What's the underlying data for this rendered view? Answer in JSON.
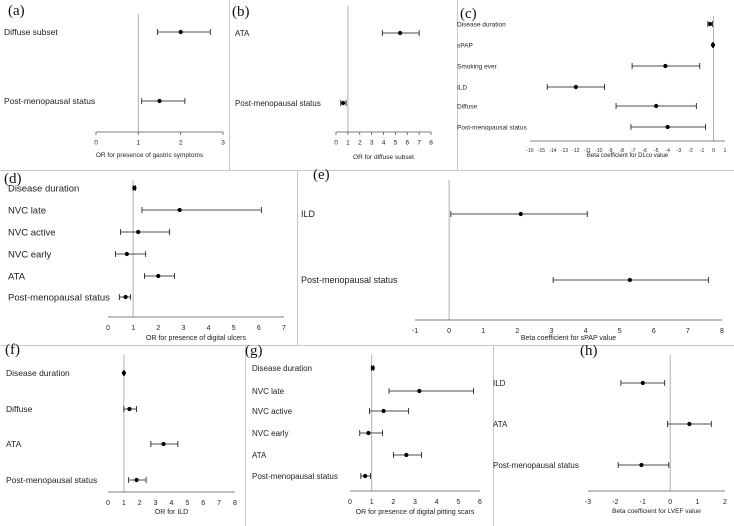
{
  "chart_data": [
    {
      "panel": "(a)",
      "type": "forest",
      "xlabel": "OR for presence of gastric symptoms",
      "xlim": [
        0,
        3
      ],
      "xticks": [
        0,
        1,
        2,
        3
      ],
      "reference": 1,
      "rows": [
        {
          "label": "Diffuse subset",
          "estimate": 2.0,
          "low": 1.45,
          "high": 2.7
        },
        {
          "label": "Post-menopausal status",
          "estimate": 1.5,
          "low": 1.08,
          "high": 2.1
        }
      ]
    },
    {
      "panel": "(b)",
      "type": "forest",
      "xlabel": "OR for diffuse subset",
      "xlim": [
        0,
        8
      ],
      "xticks": [
        0,
        1,
        2,
        3,
        4,
        5,
        6,
        7,
        8
      ],
      "reference": 1,
      "rows": [
        {
          "label": "ATA",
          "estimate": 5.4,
          "low": 3.9,
          "high": 7.0
        },
        {
          "label": "Post-menopausal status",
          "estimate": 0.6,
          "low": 0.4,
          "high": 0.85
        }
      ]
    },
    {
      "panel": "(c)",
      "type": "forest",
      "xlabel": "Beta coefficient for DLco value",
      "xlim": [
        -16,
        1
      ],
      "xticks": [
        -16,
        -15,
        -14,
        -13,
        -12,
        -11,
        -10,
        -9,
        -8,
        -7,
        -6,
        -5,
        -4,
        -3,
        -2,
        -1,
        0,
        1
      ],
      "reference": 0,
      "rows": [
        {
          "label": "Disease duration",
          "estimate": -0.3,
          "low": -0.5,
          "high": -0.1
        },
        {
          "label": "sPAP",
          "estimate": -0.05,
          "low": -0.1,
          "high": 0.0
        },
        {
          "label": "Smoking ever",
          "estimate": -4.2,
          "low": -7.1,
          "high": -1.2
        },
        {
          "label": "ILD",
          "estimate": -12.0,
          "low": -14.5,
          "high": -9.5
        },
        {
          "label": "Diffuse",
          "estimate": -5.0,
          "low": -8.5,
          "high": -1.5
        },
        {
          "label": "Post-menopausal status",
          "estimate": -4.0,
          "low": -7.2,
          "high": -0.7
        }
      ]
    },
    {
      "panel": "(d)",
      "type": "forest",
      "xlabel": "OR for presence of digital ulcers",
      "xlim": [
        0,
        7
      ],
      "xticks": [
        0,
        1,
        2,
        3,
        4,
        5,
        6,
        7
      ],
      "reference": 1,
      "rows": [
        {
          "label": "Disease duration",
          "estimate": 1.05,
          "low": 1.0,
          "high": 1.1
        },
        {
          "label": "NVC late",
          "estimate": 2.85,
          "low": 1.35,
          "high": 6.1
        },
        {
          "label": "NVC active",
          "estimate": 1.2,
          "low": 0.5,
          "high": 2.45
        },
        {
          "label": "NVC early",
          "estimate": 0.75,
          "low": 0.3,
          "high": 1.5
        },
        {
          "label": "ATA",
          "estimate": 2.0,
          "low": 1.45,
          "high": 2.65
        },
        {
          "label": "Post-menopausal status",
          "estimate": 0.7,
          "low": 0.45,
          "high": 0.9
        }
      ]
    },
    {
      "panel": "(e)",
      "type": "forest",
      "xlabel": "Beta coefficient for sPAP value",
      "xlim": [
        -1,
        8
      ],
      "xticks": [
        -1,
        0,
        1,
        2,
        3,
        4,
        5,
        6,
        7,
        8
      ],
      "reference": 0,
      "rows": [
        {
          "label": "ILD",
          "estimate": 2.1,
          "low": 0.05,
          "high": 4.05
        },
        {
          "label": "Post-menopausal status",
          "estimate": 5.3,
          "low": 3.05,
          "high": 7.6
        }
      ]
    },
    {
      "panel": "(f)",
      "type": "forest",
      "xlabel": "OR for ILD",
      "xlim": [
        0,
        8
      ],
      "xticks": [
        0,
        1,
        2,
        3,
        4,
        5,
        6,
        7,
        8
      ],
      "reference": 1,
      "rows": [
        {
          "label": "Disease duration",
          "estimate": 1.0,
          "low": 0.97,
          "high": 1.03
        },
        {
          "label": "Diffuse",
          "estimate": 1.35,
          "low": 1.0,
          "high": 1.8
        },
        {
          "label": "ATA",
          "estimate": 3.5,
          "low": 2.7,
          "high": 4.4
        },
        {
          "label": "Post-menopausal status",
          "estimate": 1.8,
          "low": 1.3,
          "high": 2.4
        }
      ]
    },
    {
      "panel": "(g)",
      "type": "forest",
      "xlabel": "OR for presence of digital pitting scars",
      "xlim": [
        0,
        6
      ],
      "xticks": [
        0,
        1,
        2,
        3,
        4,
        5,
        6
      ],
      "reference": 1,
      "rows": [
        {
          "label": "Disease duration",
          "estimate": 1.05,
          "low": 1.0,
          "high": 1.1
        },
        {
          "label": "NVC late",
          "estimate": 3.2,
          "low": 1.8,
          "high": 5.7
        },
        {
          "label": "NVC active",
          "estimate": 1.55,
          "low": 0.9,
          "high": 2.7
        },
        {
          "label": "NVC early",
          "estimate": 0.85,
          "low": 0.45,
          "high": 1.5
        },
        {
          "label": "ATA",
          "estimate": 2.6,
          "low": 2.0,
          "high": 3.3
        },
        {
          "label": "Post-menopausal status",
          "estimate": 0.7,
          "low": 0.5,
          "high": 0.95
        }
      ]
    },
    {
      "panel": "(h)",
      "type": "forest",
      "xlabel": "Beta coefficient for LVEF value",
      "xlim": [
        -3,
        2
      ],
      "xticks": [
        -3,
        -2,
        -1,
        0,
        1,
        2
      ],
      "reference": 0,
      "rows": [
        {
          "label": "ILD",
          "estimate": -1.0,
          "low": -1.8,
          "high": -0.2
        },
        {
          "label": "ATA",
          "estimate": 0.7,
          "low": -0.1,
          "high": 1.5
        },
        {
          "label": "Post-menopausal status",
          "estimate": -1.05,
          "low": -1.9,
          "high": -0.05
        }
      ]
    }
  ]
}
